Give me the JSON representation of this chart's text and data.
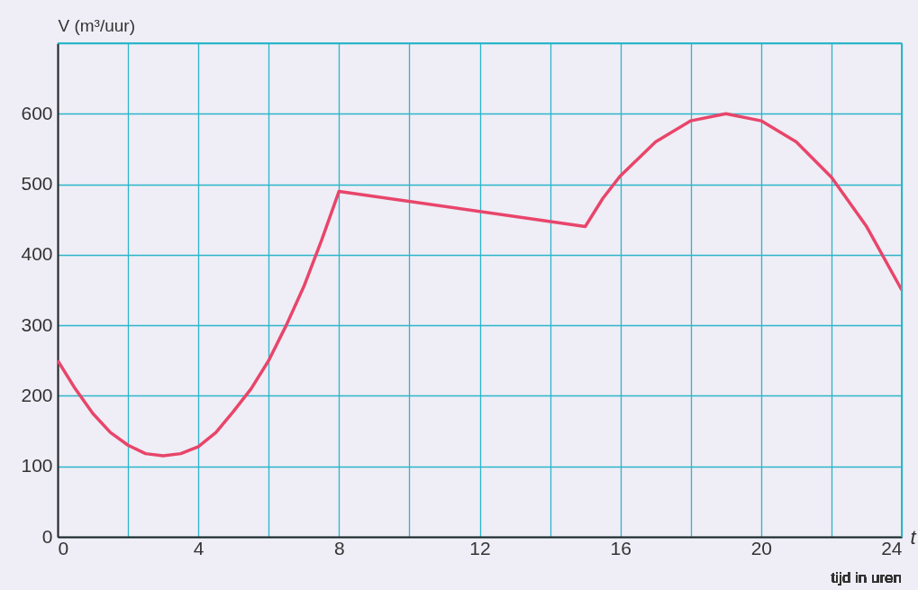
{
  "chart_data": {
    "type": "line",
    "xlabel": "t",
    "ylabel": "V (m³/uur)",
    "annotations": [
      "tijd in uren"
    ],
    "x": [
      0,
      0.5,
      1,
      1.5,
      2,
      2.5,
      3,
      3.5,
      4,
      4.5,
      5,
      5.5,
      6,
      6.5,
      7,
      7.5,
      8,
      15,
      15.5,
      16,
      17,
      18,
      19,
      20,
      21,
      22,
      23,
      24
    ],
    "series": [
      {
        "color": "#e8456a",
        "values": [
          250,
          210,
          175,
          148,
          130,
          118,
          115,
          118,
          128,
          148,
          178,
          210,
          250,
          300,
          355,
          420,
          490,
          440,
          480,
          512,
          560,
          590,
          600,
          590,
          560,
          510,
          440,
          350
        ]
      }
    ],
    "xlim": [
      0,
      24
    ],
    "ylim": [
      0,
      700
    ],
    "xticks": [
      0,
      {
        "value": 2,
        "label": null
      },
      4,
      {
        "value": 6,
        "label": null
      },
      8,
      {
        "value": 10,
        "label": null
      },
      12,
      {
        "value": 14,
        "label": null
      },
      16,
      {
        "value": 18,
        "label": null
      },
      20,
      {
        "value": 22,
        "label": null
      },
      24
    ],
    "yticks": [
      0,
      100,
      200,
      300,
      400,
      500,
      600,
      {
        "value": 700,
        "label": null
      }
    ],
    "grid": true,
    "marker": "none",
    "line_style": "solid"
  }
}
